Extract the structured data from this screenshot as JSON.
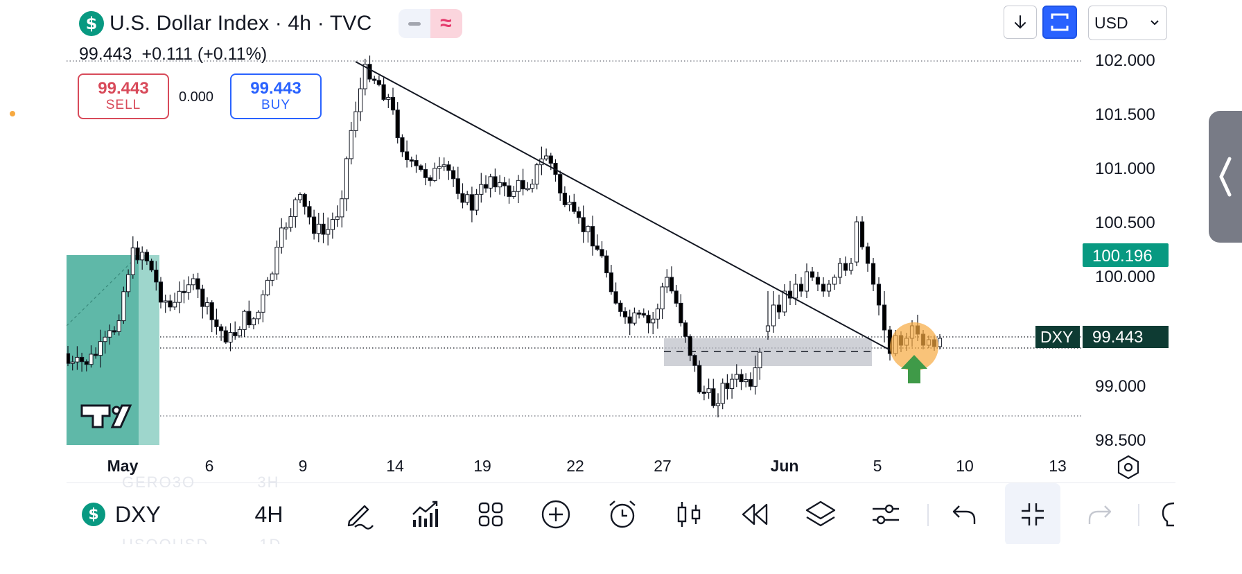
{
  "header": {
    "symbol_icon": "dollar-coin-icon",
    "symbol_icon_glyph": "$",
    "title": "U.S. Dollar Index · 4h · TVC",
    "toggle_icon": "wave-icon",
    "toggle_glyph": "≈",
    "last_price": "99.443",
    "change": "+0.111 (+0.11%)"
  },
  "trade": {
    "sell_price": "99.443",
    "sell_label": "SELL",
    "spread": "0.000",
    "buy_price": "99.443",
    "buy_label": "BUY"
  },
  "top_controls": {
    "download_icon": "arrow-down-icon",
    "mode_icon": "square-bracket-icon",
    "currency": "USD"
  },
  "price_axis": {
    "labels": [
      "102.000",
      "101.500",
      "101.000",
      "100.500",
      "100.000",
      "99.000",
      "98.500"
    ],
    "highlight_label": "100.196",
    "symbol_tag": "DXY",
    "current_price": "99.443"
  },
  "time_axis": {
    "labels": [
      "May",
      "6",
      "9",
      "14",
      "19",
      "22",
      "27",
      "Jun",
      "5",
      "10",
      "13"
    ],
    "settings_icon": "hexagon-gear-icon"
  },
  "watermark": {
    "logo": "TV",
    "icon": "tradingview-logo-icon"
  },
  "toolbar": {
    "symbol_icon_glyph": "$",
    "symbol": "DXY",
    "interval": "4H",
    "icons": [
      "pen-icon",
      "indicators-icon",
      "layout-grid-icon",
      "add-circle-icon",
      "alarm-icon",
      "candles-icon",
      "replay-icon",
      "layers-icon",
      "settings-sliders-icon",
      "undo-icon",
      "collapse-icon",
      "redo-icon",
      "lightbulb-icon"
    ]
  },
  "colors": {
    "up": "#ffffff",
    "down": "#000000",
    "sell": "#d84a5a",
    "buy": "#2962ff",
    "accent": "#089981",
    "zone": "#3aaa99",
    "arrow": "#3f9a48",
    "highlight_circle": "#f7a940"
  },
  "chart_data": {
    "type": "candlestick",
    "symbol": "DXY",
    "interval": "4h",
    "x": [
      "May",
      "6",
      "9",
      "14",
      "19",
      "22",
      "27",
      "Jun",
      "5",
      "10",
      "13"
    ],
    "ylim": [
      98.3,
      102.1
    ],
    "last_price": 99.443,
    "marked_price": 100.196,
    "trendline": [
      [
        101.98
      ],
      [
        99.4
      ]
    ],
    "support_zone": [
      99.2,
      99.45
    ],
    "key_swings": [
      {
        "label": "May",
        "value": 99.0
      },
      {
        "label": "6",
        "value": 100.2
      },
      {
        "label": "9",
        "value": 99.3
      },
      {
        "label": "14",
        "value": 101.95
      },
      {
        "label": "19",
        "value": 101.25
      },
      {
        "label": "22",
        "value": 99.5
      },
      {
        "label": "27",
        "value": 98.75
      },
      {
        "label": "Jun",
        "value": 100.55
      },
      {
        "label": "Jun",
        "value": 99.2
      },
      {
        "label": "Jun",
        "value": 99.443
      }
    ]
  }
}
